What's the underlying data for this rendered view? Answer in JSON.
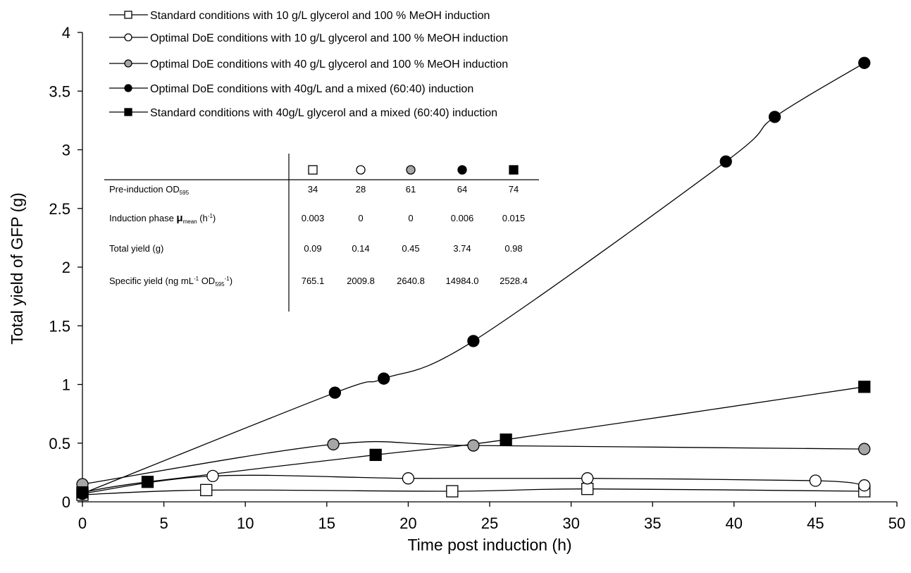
{
  "chart_data": {
    "type": "line",
    "xlabel": "Time post induction (h)",
    "ylabel": "Total yield of GFP (g)",
    "xlim": [
      0,
      50
    ],
    "ylim": [
      0,
      4
    ],
    "x_ticks": [
      "0",
      "5",
      "10",
      "15",
      "20",
      "25",
      "30",
      "35",
      "40",
      "45",
      "50"
    ],
    "y_ticks": [
      "0",
      "0.5",
      "1",
      "1.5",
      "2",
      "2.5",
      "3",
      "3.5",
      "4"
    ],
    "grid": false,
    "legend_position": "top-left",
    "series": [
      {
        "name": "Standard conditions with 10 g/L glycerol and 100 % MeOH induction",
        "marker": "square",
        "fill": "#ffffff",
        "x": [
          0,
          7.6,
          22.7,
          31,
          48
        ],
        "y": [
          0.06,
          0.1,
          0.09,
          0.11,
          0.09
        ]
      },
      {
        "name": "Optimal DoE conditions  with 10 g/L glycerol and 100 % MeOH induction",
        "marker": "circle",
        "fill": "#ffffff",
        "x": [
          0,
          8,
          20,
          31,
          45,
          48
        ],
        "y": [
          0.07,
          0.22,
          0.2,
          0.2,
          0.18,
          0.14
        ]
      },
      {
        "name": "Optimal DoE conditions with 40 g/L glycerol and 100 % MeOH induction",
        "marker": "circle",
        "fill": "#a6a6a6",
        "x": [
          0,
          15.4,
          24,
          48
        ],
        "y": [
          0.15,
          0.49,
          0.48,
          0.45
        ]
      },
      {
        "name": "Optimal DoE conditions with 40g/L and a mixed (60:40) induction",
        "marker": "circle",
        "fill": "#000000",
        "x": [
          0,
          15.5,
          18.5,
          24,
          39.5,
          42.5,
          48
        ],
        "y": [
          0.07,
          0.93,
          1.05,
          1.37,
          2.9,
          3.28,
          3.74
        ]
      },
      {
        "name": "Standard conditions with 40g/L glycerol and a mixed (60:40) induction",
        "marker": "square",
        "fill": "#000000",
        "x": [
          0,
          4,
          18,
          26,
          48
        ],
        "y": [
          0.08,
          0.17,
          0.4,
          0.53,
          0.98
        ]
      }
    ],
    "inset_table": {
      "rows": [
        {
          "label": "Pre-induction OD",
          "sub": "595",
          "values": [
            "34",
            "28",
            "61",
            "64",
            "74"
          ]
        },
        {
          "label": "Induction phase ",
          "mu": "μ",
          "mu_sub": "mean",
          "unit": " (h",
          "unit_sup": "-1",
          "unit_end": ")",
          "values": [
            "0.003",
            "0",
            "0",
            "0.006",
            "0.015"
          ]
        },
        {
          "label": "Total yield (g)",
          "values": [
            "0.09",
            "0.14",
            "0.45",
            "3.74",
            "0.98"
          ]
        },
        {
          "label": "Specific yield (ng mL",
          "sup1": "-1",
          "mid": " OD",
          "sub": "595",
          "sup2": "-1",
          "end": ")",
          "values": [
            "765.1",
            "2009.8",
            "2640.8",
            "14984.0",
            "2528.4"
          ]
        }
      ]
    }
  }
}
